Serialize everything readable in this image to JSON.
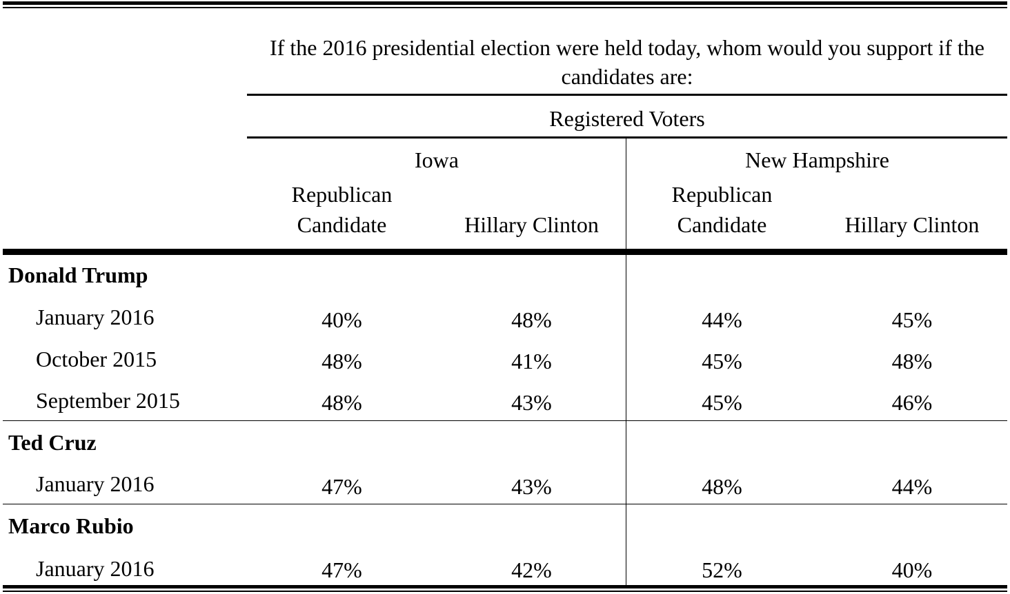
{
  "question": "If the 2016 presidential election were held today, whom would you support if the candidates are:",
  "population": "Registered Voters",
  "states": [
    "Iowa",
    "New Hampshire"
  ],
  "subheaders": [
    {
      "line1": "Republican",
      "line2": "Candidate"
    },
    {
      "line1": "",
      "line2": "Hillary Clinton"
    },
    {
      "line1": "Republican",
      "line2": "Candidate"
    },
    {
      "line1": "",
      "line2": "Hillary Clinton"
    }
  ],
  "groups": [
    {
      "candidate": "Donald Trump",
      "rows": [
        {
          "date": "January 2016",
          "values": [
            "40%",
            "48%",
            "44%",
            "45%"
          ]
        },
        {
          "date": "October 2015",
          "values": [
            "48%",
            "41%",
            "45%",
            "48%"
          ]
        },
        {
          "date": "September 2015",
          "values": [
            "48%",
            "43%",
            "45%",
            "46%"
          ]
        }
      ]
    },
    {
      "candidate": "Ted Cruz",
      "rows": [
        {
          "date": "January 2016",
          "values": [
            "47%",
            "43%",
            "48%",
            "44%"
          ]
        }
      ]
    },
    {
      "candidate": "Marco Rubio",
      "rows": [
        {
          "date": "January 2016",
          "values": [
            "47%",
            "42%",
            "52%",
            "40%"
          ]
        }
      ]
    }
  ],
  "chart_data": {
    "type": "table",
    "title": "If the 2016 presidential election were held today, whom would you support if the candidates are:",
    "population": "Registered Voters",
    "columns": [
      "Iowa: Republican Candidate",
      "Iowa: Hillary Clinton",
      "New Hampshire: Republican Candidate",
      "New Hampshire: Hillary Clinton"
    ],
    "rows": [
      {
        "candidate": "Donald Trump",
        "date": "January 2016",
        "values": [
          40,
          48,
          44,
          45
        ]
      },
      {
        "candidate": "Donald Trump",
        "date": "October 2015",
        "values": [
          48,
          41,
          45,
          48
        ]
      },
      {
        "candidate": "Donald Trump",
        "date": "September 2015",
        "values": [
          48,
          43,
          45,
          46
        ]
      },
      {
        "candidate": "Ted Cruz",
        "date": "January 2016",
        "values": [
          47,
          43,
          48,
          44
        ]
      },
      {
        "candidate": "Marco Rubio",
        "date": "January 2016",
        "values": [
          47,
          42,
          52,
          40
        ]
      }
    ]
  }
}
